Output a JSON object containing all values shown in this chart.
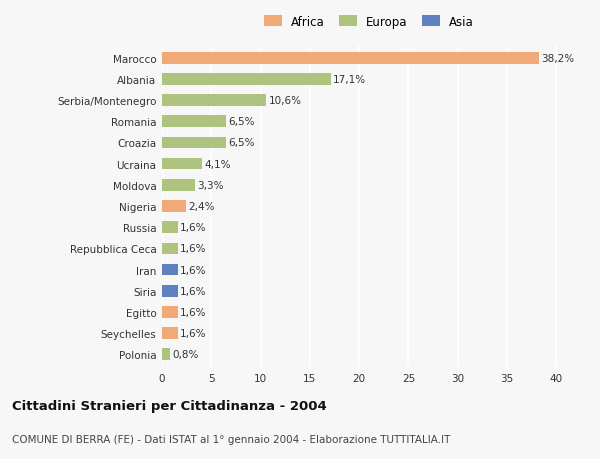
{
  "categories": [
    "Marocco",
    "Albania",
    "Serbia/Montenegro",
    "Romania",
    "Croazia",
    "Ucraina",
    "Moldova",
    "Nigeria",
    "Russia",
    "Repubblica Ceca",
    "Iran",
    "Siria",
    "Egitto",
    "Seychelles",
    "Polonia"
  ],
  "values": [
    38.2,
    17.1,
    10.6,
    6.5,
    6.5,
    4.1,
    3.3,
    2.4,
    1.6,
    1.6,
    1.6,
    1.6,
    1.6,
    1.6,
    0.8
  ],
  "labels": [
    "38,2%",
    "17,1%",
    "10,6%",
    "6,5%",
    "6,5%",
    "4,1%",
    "3,3%",
    "2,4%",
    "1,6%",
    "1,6%",
    "1,6%",
    "1,6%",
    "1,6%",
    "1,6%",
    "0,8%"
  ],
  "colors": [
    "#f0aa78",
    "#aec47e",
    "#aec47e",
    "#aec47e",
    "#aec47e",
    "#aec47e",
    "#aec47e",
    "#f0aa78",
    "#aec47e",
    "#aec47e",
    "#6080c0",
    "#6080c0",
    "#f0aa78",
    "#f0aa78",
    "#aec47e"
  ],
  "legend_labels": [
    "Africa",
    "Europa",
    "Asia"
  ],
  "legend_colors": [
    "#f0aa78",
    "#aec47e",
    "#6080c0"
  ],
  "title_bold": "Cittadini Stranieri per Cittadinanza - 2004",
  "subtitle": "COMUNE DI BERRA (FE) - Dati ISTAT al 1° gennaio 2004 - Elaborazione TUTTITALIA.IT",
  "xlim": [
    0,
    42
  ],
  "xticks": [
    0,
    5,
    10,
    15,
    20,
    25,
    30,
    35,
    40
  ],
  "background_color": "#f7f7f7",
  "bar_height": 0.55,
  "label_fontsize": 7.5,
  "tick_fontsize": 7.5,
  "title_fontsize": 9.5,
  "subtitle_fontsize": 7.5
}
